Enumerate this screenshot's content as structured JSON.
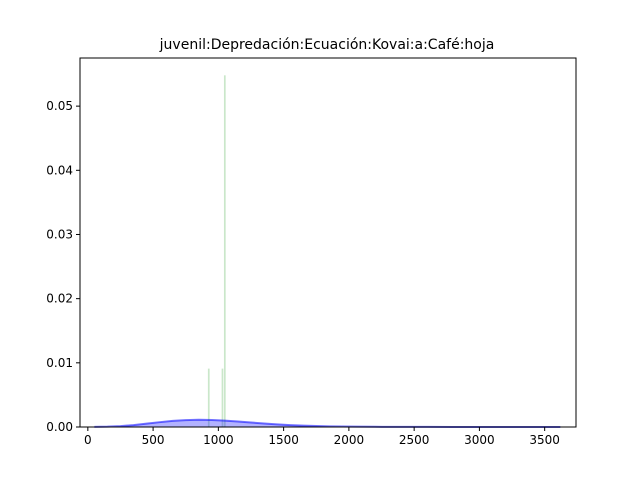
{
  "chart_data": {
    "type": "area",
    "title": "juvenil:Depredación:Ecuación:Kovai:a:Café:hoja",
    "xlabel": "",
    "ylabel": "",
    "xlim": [
      -60,
      3740
    ],
    "ylim": [
      0,
      0.0575
    ],
    "grid": false,
    "x_ticks": [
      0,
      500,
      1000,
      1500,
      2000,
      2500,
      3000,
      3500
    ],
    "y_ticks": [
      0.0,
      0.01,
      0.02,
      0.03,
      0.04,
      0.05
    ],
    "x_tick_labels": [
      "0",
      "500",
      "1000",
      "1500",
      "2000",
      "2500",
      "3000",
      "3500"
    ],
    "y_tick_labels": [
      "0.00",
      "0.01",
      "0.02",
      "0.03",
      "0.04",
      "0.05"
    ],
    "series": [
      {
        "kind": "histogram",
        "color": "#2ca02c",
        "opacity": 0.25,
        "bars": [
          {
            "x0": 920,
            "x1": 933,
            "value": 0.0091
          },
          {
            "x0": 1025,
            "x1": 1038,
            "value": 0.0091
          },
          {
            "x0": 1043,
            "x1": 1056,
            "value": 0.0548
          }
        ]
      },
      {
        "kind": "density",
        "color": "#0000ff",
        "opacity": 0.55,
        "x": [
          50,
          150,
          250,
          350,
          450,
          550,
          650,
          750,
          850,
          950,
          1050,
          1150,
          1250,
          1350,
          1450,
          1550,
          1650,
          1750,
          1850,
          1950,
          2050,
          2200,
          2400,
          2600,
          2800,
          3000,
          3200,
          3400,
          3620
        ],
        "y": [
          2e-05,
          5e-05,
          0.00014,
          0.0003,
          0.00052,
          0.00075,
          0.00095,
          0.00108,
          0.00113,
          0.0011,
          0.001,
          0.00086,
          0.0007,
          0.00055,
          0.00041,
          0.0003,
          0.00021,
          0.00015,
          0.0001,
          7e-05,
          5e-05,
          3e-05,
          2e-05,
          1e-05,
          6e-06,
          4e-06,
          2e-06,
          1e-06,
          0.0
        ]
      }
    ]
  }
}
